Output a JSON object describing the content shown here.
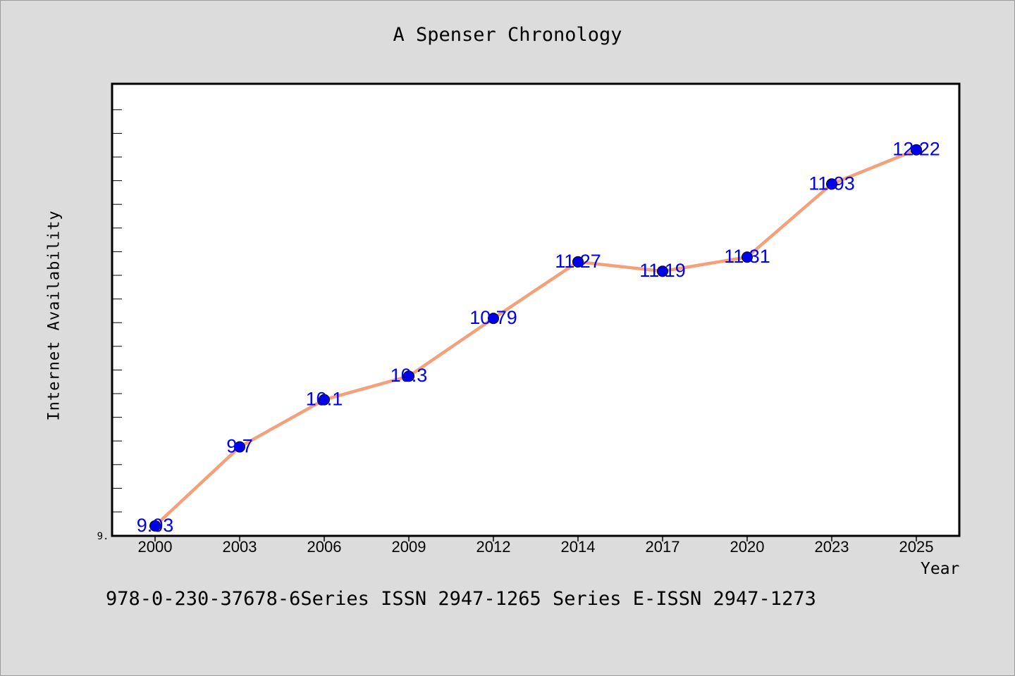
{
  "chart_data": {
    "type": "line",
    "title": "A Spenser Chronology",
    "xlabel": "Year",
    "ylabel": "Internet Availability",
    "categories": [
      "2000",
      "2003",
      "2006",
      "2009",
      "2012",
      "2014",
      "2017",
      "2020",
      "2023",
      "2025"
    ],
    "series": [
      {
        "values": [
          9.03,
          9.7,
          10.1,
          10.3,
          10.79,
          11.27,
          11.19,
          11.31,
          11.93,
          12.22
        ],
        "data_labels": [
          "9.03",
          "9.7",
          "10.1",
          "10.3",
          "10.79",
          "11.27",
          "11.19",
          "11.31",
          "11.93",
          "12.22"
        ]
      }
    ],
    "ylim": [
      8.945,
      12.78
    ],
    "y_tick_labels": [
      "9."
    ],
    "grid": false,
    "line_color": "#f4a07a",
    "marker_color": "#0000ee",
    "label_color": "#0000ee"
  },
  "footer_text": "978-0-230-37678-6Series ISSN 2947-1265 Series E-ISSN 2947-1273"
}
